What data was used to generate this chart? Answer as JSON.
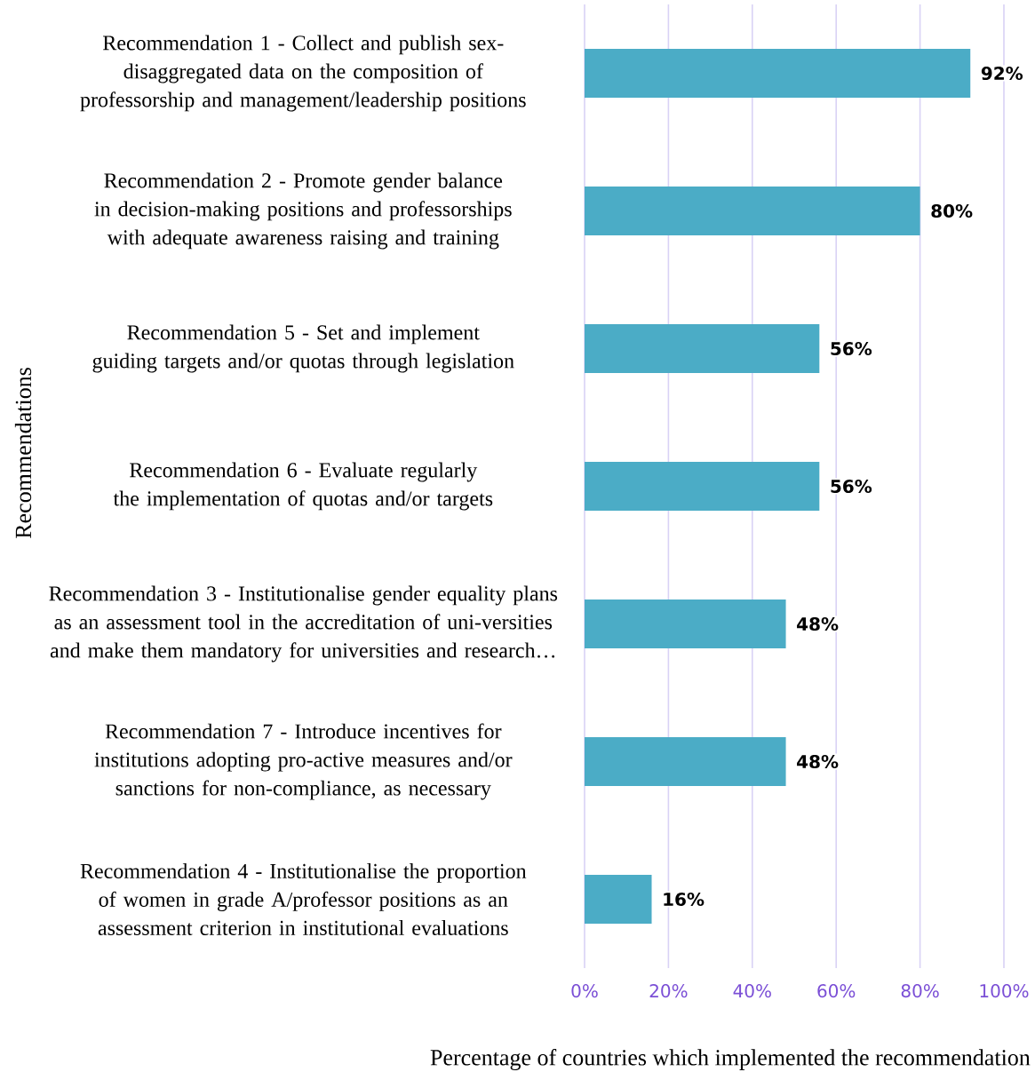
{
  "chart_data": {
    "type": "bar",
    "orientation": "horizontal",
    "categories": [
      "Recommendation 1 - Collect and publish sex-disaggregated data on the composition of professorship and management/leadership positions",
      "Recommendation 2 - Promote gender balance in decision-making positions and professorships with adequate awareness raising and training",
      "Recommendation 5 - Set and implement guiding targets and/or quotas through legislation",
      "Recommendation 6 - Evaluate regularly the implementation of quotas and/or targets",
      "Recommendation 3 - Institutionalise gender equality plans as an assessment tool in the accreditation of uni-versities and make them mandatory for universities and research…",
      "Recommendation 7 - Introduce incentives for institutions adopting pro-active measures and/or sanctions for non-compliance, as necessary",
      "Recommendation 4 - Institutionalise the proportion of women in grade A/professor positions as an assessment criterion in institutional evaluations"
    ],
    "values": [
      92,
      80,
      56,
      56,
      48,
      48,
      16
    ],
    "value_labels": [
      "92%",
      "80%",
      "56%",
      "56%",
      "48%",
      "48%",
      "16%"
    ],
    "color": "#4bacc6",
    "xlim": [
      0,
      100
    ],
    "xticks": [
      {
        "value": 0,
        "label": "0%"
      },
      {
        "value": 20,
        "label": "20%"
      },
      {
        "value": 40,
        "label": "40%"
      },
      {
        "value": 60,
        "label": "60%"
      },
      {
        "value": 80,
        "label": "80%"
      },
      {
        "value": 100,
        "label": "100%"
      }
    ],
    "grid": "x",
    "xlabel": "Percentage of countries which implemented the recommendation",
    "ylabel": "Recommendations"
  }
}
